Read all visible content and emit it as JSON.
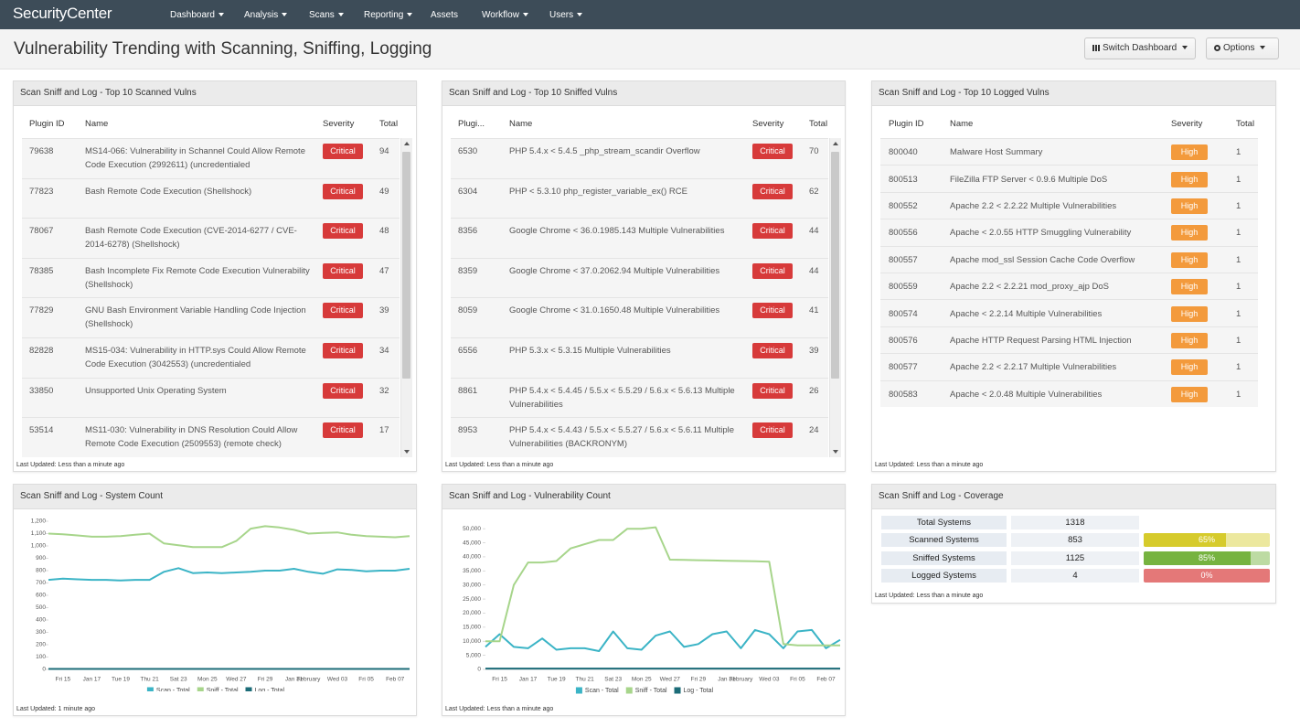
{
  "nav": {
    "logo": "SecurityCenter",
    "menu": [
      "Dashboard",
      "Analysis",
      "Scans",
      "Reporting",
      "Assets",
      "Workflow",
      "Users"
    ]
  },
  "header": {
    "title": "Vulnerability Trending with Scanning, Sniffing, Logging",
    "buttons": [
      "Switch Dashboard",
      "Options"
    ]
  },
  "tables": [
    {
      "title": "Scan Sniff and Log - Top 10 Scanned Vulns",
      "columns": [
        "Plugin ID",
        "Name",
        "Severity",
        "Total"
      ],
      "severity_color": "#d73a3a",
      "footer": "Last Updated: Less than a minute ago",
      "rows": [
        [
          79638,
          "MS14-066: Vulnerability in Schannel Could Allow Remote Code Execution (2992611) (uncredentialed",
          "Critical",
          94
        ],
        [
          77823,
          "Bash Remote Code Execution (Shellshock)",
          "Critical",
          49
        ],
        [
          78067,
          "Bash Remote Code Execution (CVE-2014-6277 / CVE-2014-6278) (Shellshock)",
          "Critical",
          48
        ],
        [
          78385,
          "Bash Incomplete Fix Remote Code Execution Vulnerability (Shellshock)",
          "Critical",
          47
        ],
        [
          77829,
          "GNU Bash Environment Variable Handling Code Injection (Shellshock)",
          "Critical",
          39
        ],
        [
          82828,
          "MS15-034: Vulnerability in HTTP.sys Could Allow Remote Code Execution (3042553) (uncredentialed",
          "Critical",
          34
        ],
        [
          33850,
          "Unsupported Unix Operating System",
          "Critical",
          32
        ],
        [
          53514,
          "MS11-030: Vulnerability in DNS Resolution Could Allow Remote Code Execution (2509553) (remote check)",
          "Critical",
          17
        ]
      ]
    },
    {
      "title": "Scan Sniff and Log - Top 10 Sniffed Vulns",
      "columns": [
        "Plugi...",
        "Name",
        "Severity",
        "Total"
      ],
      "severity_color": "#d73a3a",
      "footer": "Last Updated: Less than a minute ago",
      "rows": [
        [
          6530,
          "PHP 5.4.x < 5.4.5 _php_stream_scandir Overflow",
          "Critical",
          70
        ],
        [
          6304,
          "PHP < 5.3.10 php_register_variable_ex() RCE",
          "Critical",
          62
        ],
        [
          8356,
          "Google Chrome < 36.0.1985.143 Multiple Vulnerabilities",
          "Critical",
          44
        ],
        [
          8359,
          "Google Chrome < 37.0.2062.94 Multiple Vulnerabilities",
          "Critical",
          44
        ],
        [
          8059,
          "Google Chrome < 31.0.1650.48 Multiple Vulnerabilities",
          "Critical",
          41
        ],
        [
          6556,
          "PHP 5.3.x < 5.3.15 Multiple Vulnerabilities",
          "Critical",
          39
        ],
        [
          8861,
          "PHP 5.4.x < 5.4.45 / 5.5.x < 5.5.29 / 5.6.x < 5.6.13 Multiple Vulnerabilities",
          "Critical",
          26
        ],
        [
          8953,
          "PHP 5.4.x < 5.4.43 / 5.5.x < 5.5.27 / 5.6.x < 5.6.11 Multiple Vulnerabilities (BACKRONYM)",
          "Critical",
          24
        ]
      ]
    },
    {
      "title": "Scan Sniff and Log - Top 10 Logged Vulns",
      "columns": [
        "Plugin ID",
        "Name",
        "Severity",
        "Total"
      ],
      "severity_color": "#f39a3c",
      "footer": "Last Updated: Less than a minute ago",
      "rows": [
        [
          800040,
          "Malware Host Summary",
          "High",
          1
        ],
        [
          800513,
          "FileZilla FTP Server < 0.9.6 Multiple DoS",
          "High",
          1
        ],
        [
          800552,
          "Apache 2.2 < 2.2.22 Multiple Vulnerabilities",
          "High",
          1
        ],
        [
          800556,
          "Apache < 2.0.55 HTTP Smuggling Vulnerability",
          "High",
          1
        ],
        [
          800557,
          "Apache mod_ssl Session Cache Code Overflow",
          "High",
          1
        ],
        [
          800559,
          "Apache 2.2 < 2.2.21 mod_proxy_ajp DoS",
          "High",
          1
        ],
        [
          800574,
          "Apache < 2.2.14 Multiple Vulnerabilities",
          "High",
          1
        ],
        [
          800576,
          "Apache HTTP Request Parsing HTML Injection",
          "High",
          1
        ],
        [
          800577,
          "Apache 2.2 < 2.2.17 Multiple Vulnerabilities",
          "High",
          1
        ],
        [
          800583,
          "Apache < 2.0.48 Multiple Vulnerabilities",
          "High",
          1
        ]
      ]
    }
  ],
  "chart_data": [
    {
      "type": "line",
      "title": "Scan Sniff and Log - System Count",
      "categories": [
        null,
        "Fri 15",
        null,
        "Jan 17",
        null,
        "Tue 19",
        null,
        "Thu 21",
        null,
        "Sat 23",
        null,
        "Mon 25",
        null,
        "Wed 27",
        null,
        "Fri 29",
        null,
        "Jan 31",
        "February",
        null,
        "Wed 03",
        null,
        "Fri 05",
        null,
        "Feb 07",
        null
      ],
      "series": [
        {
          "name": "Scan - Total",
          "color": "#3bb4c6",
          "values": [
            725,
            735,
            730,
            725,
            725,
            720,
            725,
            725,
            790,
            820,
            780,
            785,
            780,
            785,
            790,
            800,
            800,
            815,
            790,
            775,
            810,
            805,
            795,
            800,
            800,
            815
          ]
        },
        {
          "name": "Sniff - Total",
          "color": "#a7d58b",
          "values": [
            1100,
            1095,
            1085,
            1075,
            1075,
            1080,
            1090,
            1100,
            1020,
            1005,
            990,
            990,
            990,
            1040,
            1140,
            1160,
            1150,
            1130,
            1100,
            1105,
            1110,
            1090,
            1080,
            1075,
            1070,
            1080
          ]
        },
        {
          "name": "Log - Total",
          "color": "#1c6c78",
          "values": [
            4,
            4,
            4,
            4,
            4,
            4,
            4,
            4,
            4,
            4,
            4,
            4,
            4,
            4,
            4,
            4,
            4,
            4,
            4,
            4,
            4,
            4,
            4,
            4,
            4,
            4
          ]
        }
      ],
      "ylim": [
        0,
        1200
      ],
      "yticks": [
        0,
        100,
        200,
        300,
        400,
        500,
        600,
        700,
        800,
        900,
        {
          "value": 1000,
          "label": "1,000"
        },
        {
          "value": 1100,
          "label": "1,100"
        },
        {
          "value": 1200,
          "label": "1,200"
        }
      ],
      "grid": false,
      "legend": "bottom"
    },
    {
      "type": "line",
      "title": "Scan Sniff and Log - Vulnerability Count",
      "categories": [
        null,
        "Fri 15",
        null,
        "Jan 17",
        null,
        "Tue 19",
        null,
        "Thu 21",
        null,
        "Sat 23",
        null,
        "Mon 25",
        null,
        "Wed 27",
        null,
        "Fri 29",
        null,
        "Jan 31",
        "February",
        null,
        "Wed 03",
        null,
        "Fri 05",
        null,
        "Feb 07",
        null
      ],
      "series": [
        {
          "name": "Scan - Total",
          "color": "#3bb4c6",
          "values": [
            8000,
            12500,
            8000,
            7500,
            11000,
            7000,
            7500,
            7500,
            6500,
            13500,
            7500,
            7000,
            12000,
            13500,
            8000,
            9000,
            12500,
            13500,
            7500,
            14000,
            12500,
            7500,
            13500,
            14000,
            7500,
            10500
          ]
        },
        {
          "name": "Sniff - Total",
          "color": "#a7d58b",
          "values": [
            10000,
            10000,
            30000,
            38000,
            38000,
            38500,
            43000,
            44500,
            46000,
            46000,
            50000,
            50000,
            50500,
            39000,
            38900,
            38800,
            38700,
            38600,
            38500,
            38400,
            38300,
            9000,
            8500,
            8500,
            8500,
            8500
          ]
        },
        {
          "name": "Log - Total",
          "color": "#1c6c78",
          "values": [
            300,
            300,
            300,
            300,
            300,
            300,
            300,
            300,
            300,
            300,
            300,
            300,
            300,
            300,
            300,
            300,
            300,
            300,
            300,
            300,
            300,
            300,
            300,
            300,
            300,
            300
          ]
        }
      ],
      "ylim": [
        0,
        52000
      ],
      "yticks": [
        0,
        {
          "value": 5000,
          "label": "5,000"
        },
        {
          "value": 10000,
          "label": "10,000"
        },
        {
          "value": 15000,
          "label": "15,000"
        },
        {
          "value": 20000,
          "label": "20,000"
        },
        {
          "value": 25000,
          "label": "25,000"
        },
        {
          "value": 30000,
          "label": "30,000"
        },
        {
          "value": 35000,
          "label": "35,000"
        },
        {
          "value": 40000,
          "label": "40,000"
        },
        {
          "value": 45000,
          "label": "45,000"
        },
        {
          "value": 50000,
          "label": "50,000"
        }
      ],
      "grid": false,
      "legend": "bottom"
    }
  ],
  "chart_footers": [
    "Last Updated: 1 minute ago",
    "Last Updated: Less than a minute ago"
  ],
  "coverage": {
    "title": "Scan Sniff and Log - Coverage",
    "footer": "Last Updated: Less than a minute ago",
    "rows": [
      {
        "label": "Total Systems",
        "count": 1318
      },
      {
        "label": "Scanned Systems",
        "count": 853,
        "percent": 65,
        "percent_label": "65%",
        "color": "#d6cb2c",
        "track_color": "#ece89e"
      },
      {
        "label": "Sniffed Systems",
        "count": 1125,
        "percent": 85,
        "percent_label": "85%",
        "color": "#76b340",
        "track_color": "#bddba3"
      },
      {
        "label": "Logged Systems",
        "count": 4,
        "percent": 0,
        "percent_label": "0%",
        "color": "#e07070",
        "track_color": "#e47878"
      }
    ]
  }
}
